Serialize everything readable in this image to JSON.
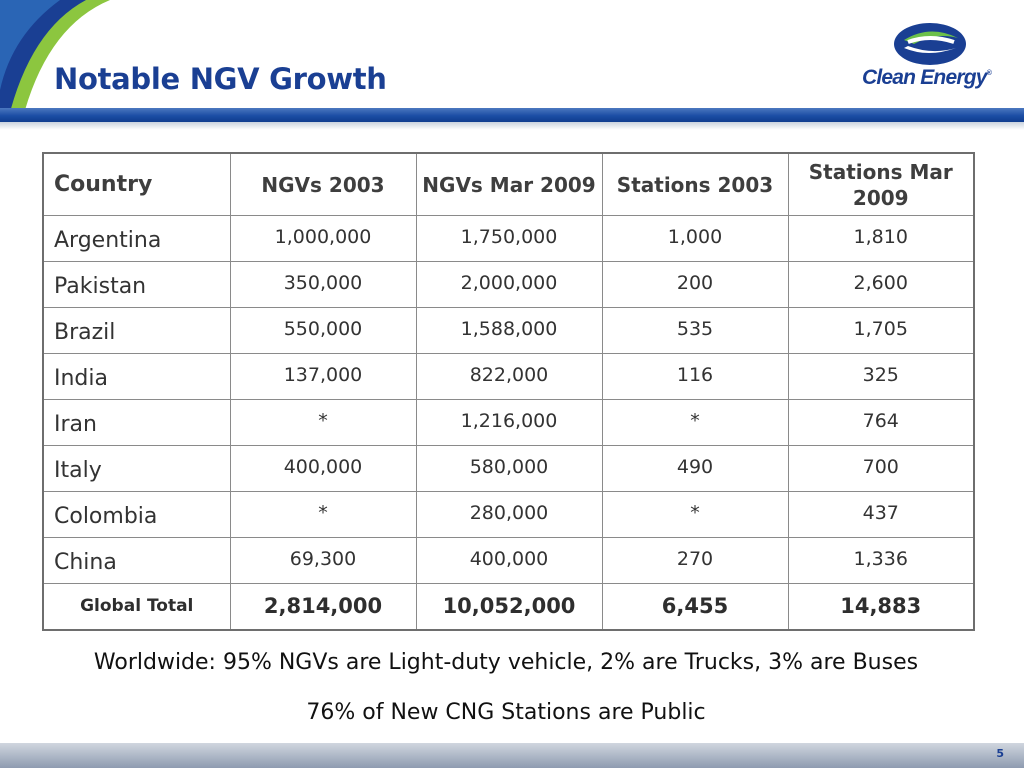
{
  "slide": {
    "title": "Notable NGV Growth",
    "page_number": "5"
  },
  "logo": {
    "text": "Clean Energy",
    "mark": "®",
    "colors": {
      "primary": "#1a3f93",
      "accent": "#6cc04a"
    }
  },
  "table": {
    "headers": [
      "Country",
      "NGVs 2003",
      "NGVs Mar 2009",
      "Stations 2003",
      "Stations Mar 2009"
    ],
    "rows": [
      [
        "Argentina",
        "1,000,000",
        "1,750,000",
        "1,000",
        "1,810"
      ],
      [
        "Pakistan",
        "350,000",
        "2,000,000",
        "200",
        "2,600"
      ],
      [
        "Brazil",
        "550,000",
        "1,588,000",
        "535",
        "1,705"
      ],
      [
        "India",
        "137,000",
        "822,000",
        "116",
        "325"
      ],
      [
        "Iran",
        "*",
        "1,216,000",
        "*",
        "764"
      ],
      [
        "Italy",
        "400,000",
        "580,000",
        "490",
        "700"
      ],
      [
        "Colombia",
        "*",
        "280,000",
        "*",
        "437"
      ],
      [
        "China",
        "69,300",
        "400,000",
        "270",
        "1,336"
      ]
    ],
    "total": [
      "Global Total",
      "2,814,000",
      "10,052,000",
      "6,455",
      "14,883"
    ]
  },
  "notes": {
    "line1": "Worldwide: 95% NGVs are Light-duty vehicle, 2% are Trucks, 3% are Buses",
    "line2": "76% of New CNG Stations are Public"
  },
  "colors": {
    "title": "#1a3f93",
    "header_bar": "#1c4ea5",
    "corner_green": "#8cc63f",
    "corner_blue": "#1a3f93"
  }
}
